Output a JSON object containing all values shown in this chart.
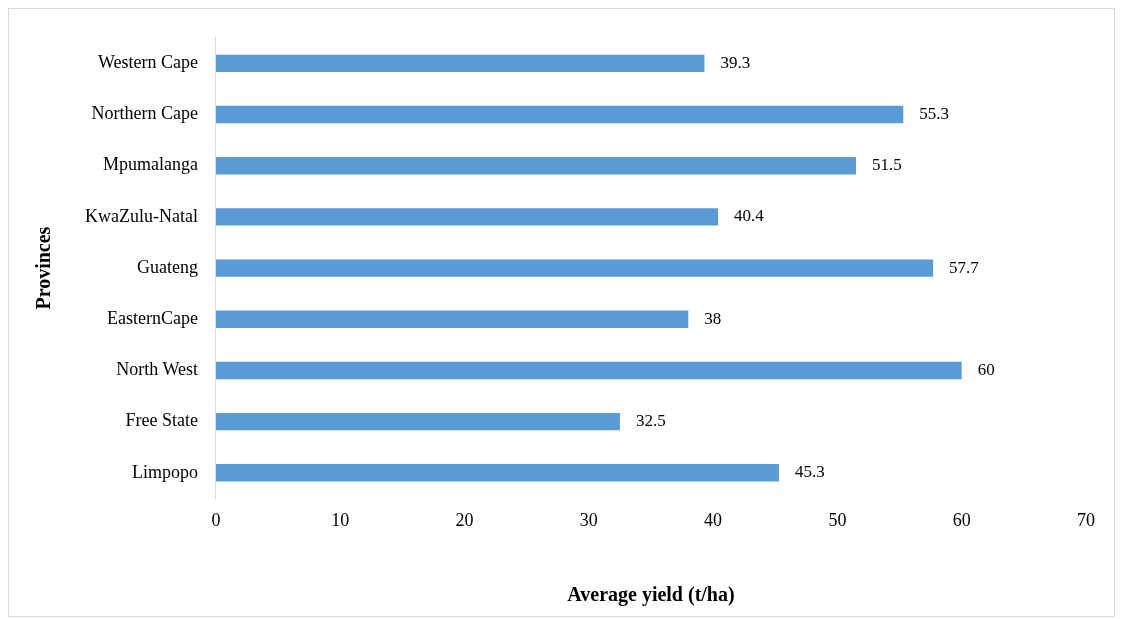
{
  "chart_data": {
    "type": "bar",
    "orientation": "horizontal",
    "xlabel": "Average yield (t/ha)",
    "ylabel": "Provinces",
    "categories": [
      "Western Cape",
      "Northern Cape",
      "Mpumalanga",
      "KwaZulu-Natal",
      "Guateng",
      "EasternCape",
      "North West",
      "Free State",
      "Limpopo"
    ],
    "values": [
      39.3,
      55.3,
      51.5,
      40.4,
      57.7,
      38,
      60,
      32.5,
      45.3
    ],
    "color": "#5b9bd5",
    "xlim": [
      0,
      70
    ],
    "xticks": [
      0,
      10,
      20,
      30,
      40,
      50,
      60,
      70
    ],
    "grid": false,
    "legend": false,
    "data_labels": true
  }
}
